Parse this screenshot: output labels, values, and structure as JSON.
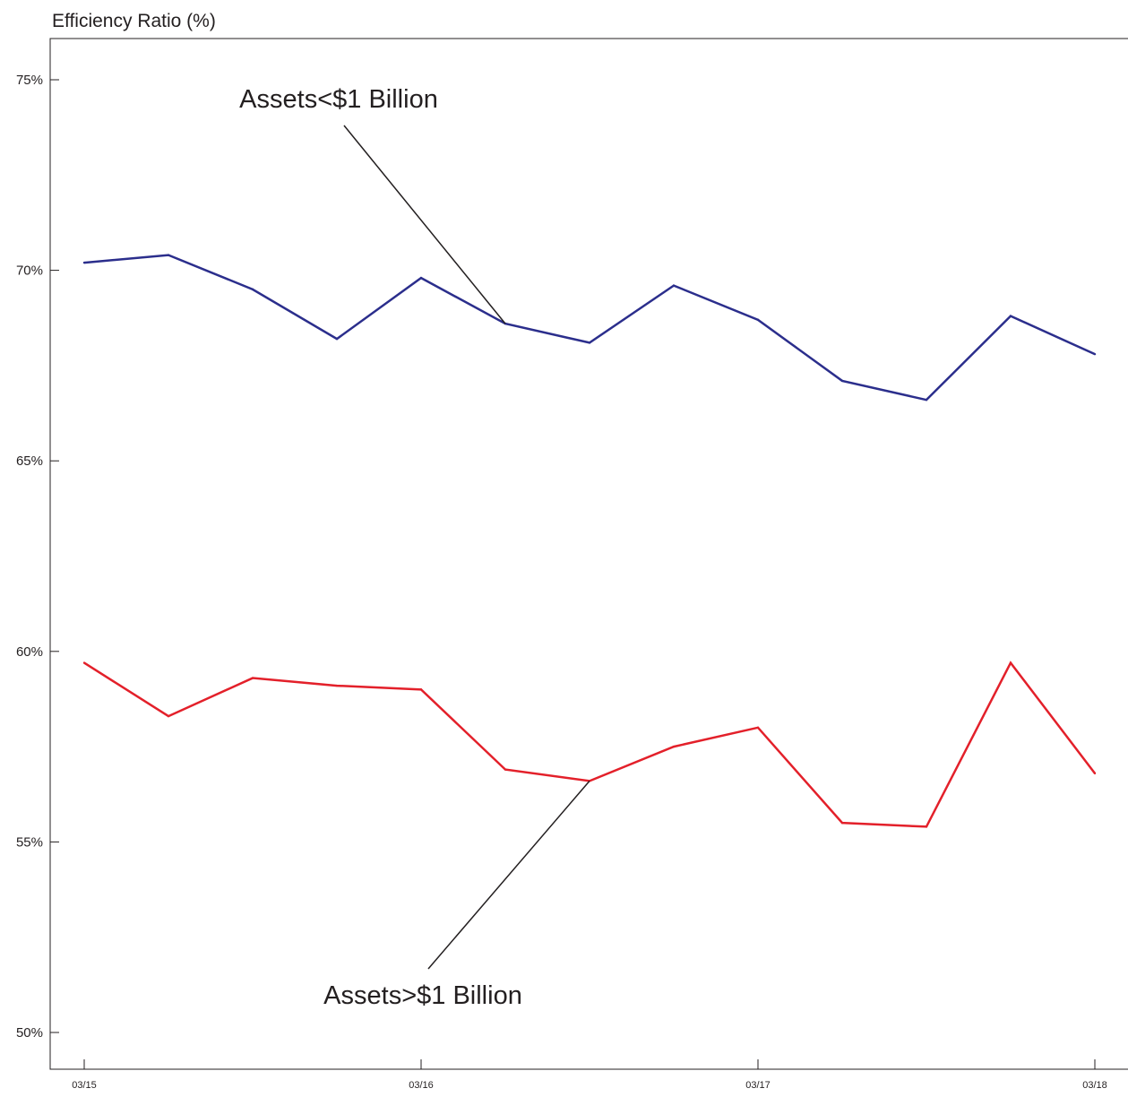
{
  "chart_data": {
    "type": "line",
    "title": "Efficiency Ratio (%)",
    "xlabel": "",
    "ylabel": "",
    "ylim": [
      50,
      76
    ],
    "yticks": [
      50,
      55,
      60,
      65,
      70,
      75
    ],
    "ytick_labels": [
      "50%",
      "55%",
      "60%",
      "65%",
      "70%",
      "75%"
    ],
    "x": [
      "03/15",
      "06/15",
      "09/15",
      "12/15",
      "03/16",
      "06/16",
      "09/16",
      "12/16",
      "03/17",
      "06/17",
      "09/17",
      "12/17",
      "03/18"
    ],
    "xticks": [
      "03/15",
      "03/16",
      "03/17",
      "03/18"
    ],
    "grid": false,
    "series": [
      {
        "name": "Assets<$1 Billion",
        "color": "#2b2e8c",
        "values": [
          70.2,
          70.4,
          69.5,
          68.2,
          69.8,
          68.6,
          68.1,
          69.6,
          68.7,
          67.1,
          66.6,
          68.8,
          67.8
        ]
      },
      {
        "name": "Assets>$1 Billion",
        "color": "#e3202a",
        "values": [
          59.7,
          58.3,
          59.3,
          59.1,
          59.0,
          56.9,
          56.6,
          57.5,
          58.0,
          55.5,
          55.4,
          59.7,
          56.8
        ]
      }
    ],
    "annotations": [
      {
        "text": "Assets<$1 Billion",
        "series": 0,
        "point_index": 5
      },
      {
        "text": "Assets>$1 Billion",
        "series": 1,
        "point_index": 6
      }
    ]
  }
}
